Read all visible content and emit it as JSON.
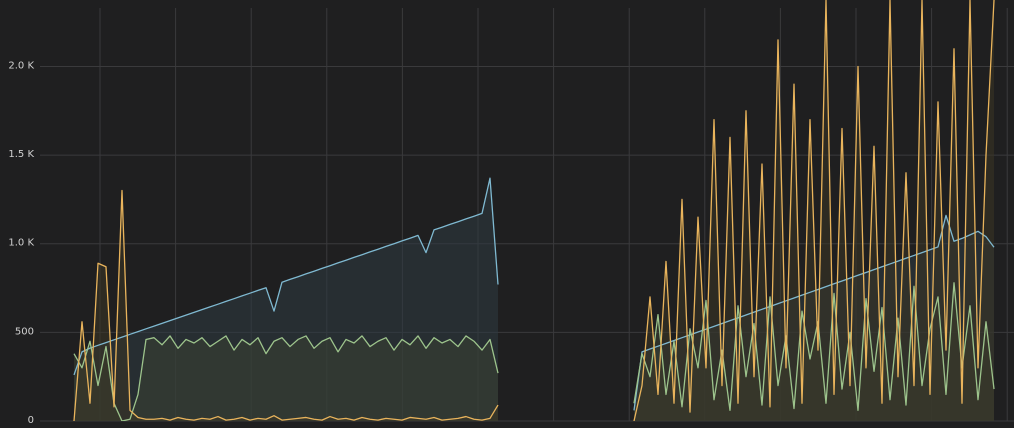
{
  "chart_data": {
    "type": "line",
    "categories": [
      null,
      null,
      null,
      null,
      null,
      null,
      null,
      null,
      null,
      null,
      null,
      null,
      null,
      null,
      null,
      null,
      null,
      null,
      null,
      null,
      null,
      null,
      null,
      null,
      null,
      null,
      null,
      null,
      null,
      null,
      null,
      null,
      null,
      null,
      null,
      null,
      null,
      null,
      null,
      null,
      null,
      null,
      null,
      null,
      null,
      null,
      null,
      null,
      null,
      null,
      null,
      null,
      null,
      null,
      null,
      null,
      null,
      null,
      null,
      null,
      null,
      null,
      null,
      null,
      null,
      null,
      null,
      null,
      null,
      null,
      null,
      null,
      null,
      null,
      null,
      null,
      null,
      null,
      null,
      null,
      null,
      null,
      null,
      null,
      null,
      null,
      null,
      null,
      null,
      null,
      null,
      null,
      null,
      null,
      null,
      null,
      null,
      null,
      null,
      null,
      null,
      null,
      null,
      null,
      null,
      null,
      null,
      null,
      null,
      null,
      null,
      null,
      null,
      null,
      null,
      null
    ],
    "series": [
      {
        "color": "#7fb9d1",
        "fill": "#2e3b42",
        "values": [
          260,
          390,
          411,
          427,
          442,
          458,
          473,
          489,
          504,
          520,
          535,
          551,
          566,
          582,
          597,
          613,
          628,
          644,
          659,
          675,
          690,
          706,
          721,
          737,
          752,
          620,
          783,
          799,
          814,
          830,
          845,
          861,
          876,
          892,
          907,
          923,
          938,
          954,
          969,
          985,
          1000,
          1016,
          1031,
          1047,
          950,
          1078,
          1093,
          1109,
          1124,
          1140,
          1155,
          1171,
          1370,
          770,
          null,
          null,
          null,
          null,
          null,
          null,
          null,
          null,
          null,
          null,
          null,
          null,
          null,
          null,
          null,
          null,
          60,
          390,
          406,
          422,
          438,
          454,
          470,
          486,
          502,
          518,
          534,
          550,
          566,
          582,
          598,
          614,
          630,
          646,
          662,
          678,
          694,
          710,
          726,
          742,
          758,
          774,
          790,
          806,
          822,
          838,
          854,
          870,
          886,
          902,
          918,
          934,
          950,
          966,
          982,
          1160,
          1014,
          1030,
          1050,
          1070,
          1040,
          980
        ]
      },
      {
        "color": "#9dc48c",
        "fill": "#3a4233",
        "values": [
          380,
          300,
          450,
          200,
          420,
          100,
          0,
          10,
          150,
          460,
          470,
          430,
          480,
          410,
          460,
          440,
          470,
          420,
          450,
          480,
          400,
          460,
          430,
          470,
          380,
          450,
          470,
          420,
          460,
          480,
          410,
          450,
          470,
          390,
          460,
          440,
          480,
          420,
          450,
          470,
          400,
          460,
          430,
          480,
          410,
          470,
          440,
          460,
          420,
          480,
          450,
          400,
          460,
          270,
          null,
          null,
          null,
          null,
          null,
          null,
          null,
          null,
          null,
          null,
          null,
          null,
          null,
          null,
          null,
          null,
          100,
          380,
          250,
          600,
          150,
          450,
          80,
          520,
          300,
          680,
          120,
          400,
          60,
          650,
          250,
          550,
          90,
          700,
          200,
          480,
          70,
          620,
          350,
          560,
          100,
          720,
          180,
          500,
          60,
          690,
          280,
          640,
          120,
          580,
          90,
          760,
          200,
          520,
          700,
          150,
          780,
          300,
          650,
          120,
          560,
          180
        ]
      },
      {
        "color": "#e9b45c",
        "fill": "#3b3424",
        "values": [
          0,
          560,
          100,
          890,
          870,
          80,
          1300,
          60,
          20,
          10,
          10,
          15,
          5,
          20,
          10,
          5,
          15,
          10,
          25,
          5,
          10,
          20,
          5,
          15,
          10,
          30,
          5,
          10,
          15,
          20,
          10,
          5,
          25,
          10,
          15,
          5,
          20,
          10,
          5,
          15,
          10,
          5,
          20,
          15,
          10,
          20,
          5,
          10,
          15,
          25,
          10,
          5,
          15,
          90,
          null,
          null,
          null,
          null,
          null,
          null,
          null,
          null,
          null,
          null,
          null,
          null,
          null,
          null,
          null,
          null,
          0,
          200,
          700,
          150,
          900,
          100,
          1250,
          50,
          1150,
          300,
          1700,
          200,
          1600,
          100,
          1750,
          250,
          1450,
          80,
          2150,
          300,
          1900,
          100,
          1700,
          400,
          2375,
          150,
          1650,
          200,
          2000,
          300,
          1550,
          100,
          2375,
          250,
          1400,
          200,
          2375,
          150,
          1800,
          400,
          2100,
          100,
          2375,
          300,
          1500,
          2375
        ]
      }
    ],
    "ylim": [
      0,
      2375
    ],
    "yticks": [
      0,
      500,
      {
        "value": 1000,
        "label": "1.0 K"
      },
      {
        "value": 1500,
        "label": "1.5 K"
      },
      {
        "value": 2000,
        "label": "2.0 K"
      }
    ],
    "grid": true
  }
}
